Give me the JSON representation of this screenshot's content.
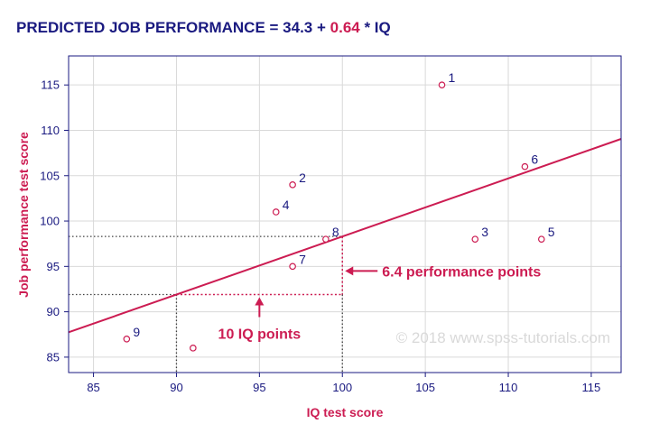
{
  "title": {
    "prefix": "PREDICTED JOB PERFORMANCE = 34.3 + ",
    "slope": "0.64",
    "suffix": " * IQ"
  },
  "colors": {
    "navy": "#1a1a80",
    "crimson": "#cc1c52",
    "grid": "#d9d9d9",
    "watermark": "#d9d9d9"
  },
  "chart_data": {
    "type": "scatter",
    "title": "PREDICTED JOB PERFORMANCE = 34.3 + 0.64 * IQ",
    "xlabel": "IQ test score",
    "ylabel": "Job performance test score",
    "xlim": [
      83.5,
      116.8
    ],
    "ylim": [
      83.3,
      118.2
    ],
    "xticks": [
      85,
      90,
      95,
      100,
      105,
      110,
      115
    ],
    "yticks": [
      85,
      90,
      95,
      100,
      105,
      110,
      115
    ],
    "grid": true,
    "points": [
      {
        "label": "1",
        "x": 106,
        "y": 115
      },
      {
        "label": "2",
        "x": 97,
        "y": 104
      },
      {
        "label": "3",
        "x": 108,
        "y": 98
      },
      {
        "label": "4",
        "x": 96,
        "y": 101
      },
      {
        "label": "5",
        "x": 112,
        "y": 98
      },
      {
        "label": "6",
        "x": 111,
        "y": 106
      },
      {
        "label": "7",
        "x": 97,
        "y": 95
      },
      {
        "label": "8",
        "x": 99,
        "y": 98
      },
      {
        "label": "9",
        "x": 87,
        "y": 87
      },
      {
        "label": "",
        "x": 91,
        "y": 86
      }
    ],
    "regression_line": {
      "intercept": 34.3,
      "slope": 0.64
    },
    "guides": {
      "x_from": 90,
      "x_to": 100
    },
    "annotations": {
      "iq_points": "10 IQ points",
      "perf_points": "6.4 performance points"
    },
    "watermark": "© 2018 www.spss-tutorials.com"
  }
}
